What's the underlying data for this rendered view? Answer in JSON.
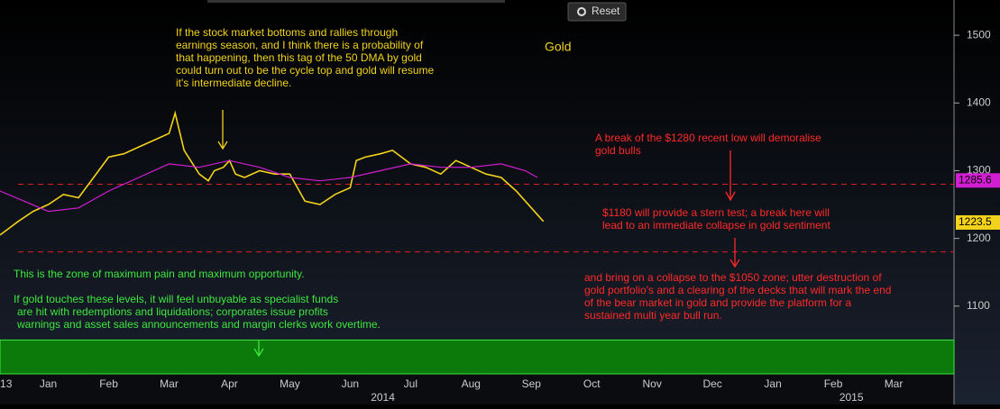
{
  "ui": {
    "reset": "Reset"
  },
  "chart_data": {
    "type": "line",
    "title": "Gold",
    "xlim": [
      -0.3,
      15.5
    ],
    "ylim": [
      1000,
      1552
    ],
    "yticks": [
      1100,
      1200,
      1300,
      1400,
      1500
    ],
    "xticks": [
      {
        "value": -0.2,
        "label": "13"
      },
      {
        "value": 0.5,
        "label": "Jan"
      },
      {
        "value": 1.5,
        "label": "Feb"
      },
      {
        "value": 2.5,
        "label": "Mar"
      },
      {
        "value": 3.5,
        "label": "Apr"
      },
      {
        "value": 4.5,
        "label": "May"
      },
      {
        "value": 5.5,
        "label": "Jun"
      },
      {
        "value": 6.5,
        "label": "Jul"
      },
      {
        "value": 7.5,
        "label": "Aug"
      },
      {
        "value": 8.5,
        "label": "Sep"
      },
      {
        "value": 9.5,
        "label": "Oct"
      },
      {
        "value": 10.5,
        "label": "Nov"
      },
      {
        "value": 11.5,
        "label": "Dec"
      },
      {
        "value": 12.5,
        "label": "Jan"
      },
      {
        "value": 13.5,
        "label": "Feb"
      },
      {
        "value": 14.5,
        "label": "Mar"
      }
    ],
    "years": [
      {
        "value": 6.04,
        "label": "2014"
      },
      {
        "value": 13.8,
        "label": "2015"
      }
    ],
    "series": [
      {
        "color": "#f2d21b",
        "x": [
          -0.3,
          0,
          0.25,
          0.5,
          0.75,
          1.0,
          1.25,
          1.5,
          1.75,
          2.0,
          2.25,
          2.5,
          2.6,
          2.75,
          3.0,
          3.15,
          3.25,
          3.4,
          3.5,
          3.6,
          3.75,
          4.0,
          4.25,
          4.5,
          4.75,
          5.0,
          5.25,
          5.5,
          5.6,
          5.75,
          6.0,
          6.2,
          6.35,
          6.5,
          6.75,
          7.0,
          7.25,
          7.5,
          7.75,
          8.0,
          8.25,
          8.5,
          8.6,
          8.7
        ],
        "values": [
          1205,
          1225,
          1240,
          1250,
          1265,
          1260,
          1290,
          1320,
          1325,
          1335,
          1345,
          1355,
          1385,
          1330,
          1295,
          1285,
          1300,
          1305,
          1315,
          1295,
          1290,
          1300,
          1295,
          1295,
          1255,
          1250,
          1265,
          1275,
          1315,
          1320,
          1325,
          1330,
          1320,
          1310,
          1305,
          1295,
          1315,
          1305,
          1295,
          1290,
          1270,
          1245,
          1235,
          1225
        ]
      },
      {
        "color": "#d21ed2",
        "x": [
          -0.3,
          0.5,
          1.0,
          1.5,
          2.0,
          2.5,
          3.0,
          3.5,
          4.0,
          4.5,
          5.0,
          5.5,
          6.0,
          6.5,
          7.0,
          7.5,
          8.0,
          8.4,
          8.6
        ],
        "values": [
          1270,
          1240,
          1245,
          1270,
          1290,
          1310,
          1305,
          1315,
          1305,
          1290,
          1285,
          1290,
          1300,
          1310,
          1305,
          1305,
          1310,
          1300,
          1290
        ]
      }
    ],
    "price_tags": [
      {
        "value": 1285.6,
        "color": "#d21ed2"
      },
      {
        "value": 1223.5,
        "color": "#f2d21b"
      }
    ],
    "levels": [
      1280,
      1180
    ],
    "zone": [
      1000,
      1050
    ],
    "annotations": [
      {
        "color": "#f2d21b",
        "lines": [
          "If the stock market bottoms and rallies through",
          "earnings season, and I think there is a probability of",
          "that happening, then this tag of the 50 DMA by gold",
          "could turn out to be the cycle top and gold will resume",
          "it's intermediate decline."
        ]
      },
      {
        "color": "#ff2a2a",
        "lines": [
          "A break of the $1280 recent low will demoralise",
          "gold bulls"
        ]
      },
      {
        "color": "#ff2a2a",
        "lines": [
          "$1180 will provide a stern test; a break here will",
          "lead to an immediate collapse in gold sentiment"
        ]
      },
      {
        "color": "#ff2a2a",
        "lines": [
          "and bring on a collapse to the $1050 zone; utter destruction of",
          "gold portfolio's and a clearing of the decks that will mark the end",
          "of the bear market in gold and provide the platform for a",
          "sustained multi year bull run."
        ]
      },
      {
        "color": "#3ee83e",
        "lines": [
          "This is the zone of maximum pain and maximum opportunity."
        ]
      },
      {
        "color": "#3ee83e",
        "lines": [
          "If gold touches these levels, it will feel unbuyable as specialist funds",
          "are hit with redemptions and liquidations; corporates issue profits",
          "warnings and asset sales announcements and margin clerks work overtime."
        ]
      }
    ]
  }
}
